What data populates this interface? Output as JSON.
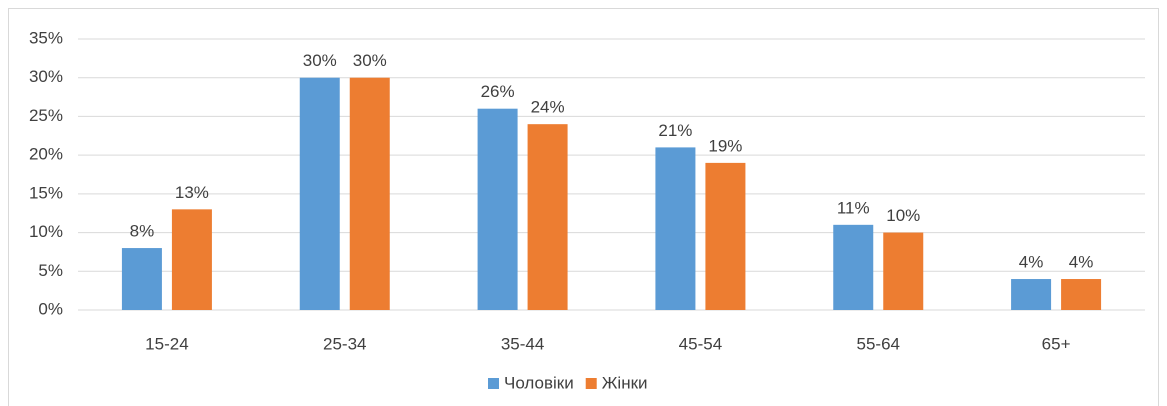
{
  "chart_data": {
    "type": "bar",
    "categories": [
      "15-24",
      "25-34",
      "35-44",
      "45-54",
      "55-64",
      "65+"
    ],
    "series": [
      {
        "name": "Чоловіки",
        "color": "#5b9bd5",
        "values": [
          8,
          30,
          26,
          21,
          11,
          4
        ],
        "value_labels": [
          "8%",
          "30%",
          "26%",
          "21%",
          "11%",
          "4%"
        ]
      },
      {
        "name": "Жінки",
        "color": "#ed7d31",
        "values": [
          13,
          30,
          24,
          19,
          10,
          4
        ],
        "value_labels": [
          "13%",
          "30%",
          "24%",
          "19%",
          "10%",
          "4%"
        ]
      }
    ],
    "ylim": [
      0,
      35
    ],
    "yticks": [
      {
        "value": 0,
        "label": "0%"
      },
      {
        "value": 5,
        "label": "5%"
      },
      {
        "value": 10,
        "label": "10%"
      },
      {
        "value": 15,
        "label": "15%"
      },
      {
        "value": 20,
        "label": "20%"
      },
      {
        "value": 25,
        "label": "25%"
      },
      {
        "value": 30,
        "label": "30%"
      },
      {
        "value": 35,
        "label": "35%"
      }
    ],
    "grid": true,
    "legend": "bottom"
  }
}
